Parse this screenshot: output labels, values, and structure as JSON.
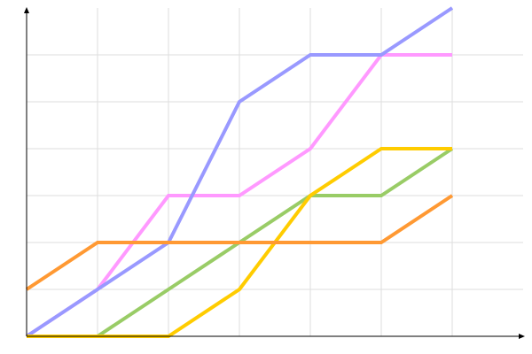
{
  "chart_data": {
    "type": "line",
    "title": "",
    "xlabel": "",
    "ylabel": "",
    "x": [
      0,
      1,
      2,
      3,
      4,
      5,
      6
    ],
    "xlim": [
      0,
      7
    ],
    "ylim": [
      0,
      7
    ],
    "grid": true,
    "legend": "none",
    "series": [
      {
        "color": "#ff99ff",
        "values": [
          0,
          1,
          3,
          3,
          4,
          6,
          6
        ]
      },
      {
        "color": "#9999ff",
        "values": [
          0,
          1,
          2,
          5,
          6,
          6,
          7
        ]
      },
      {
        "color": "#99cc66",
        "values": [
          0,
          0,
          1,
          2,
          3,
          3,
          4
        ]
      },
      {
        "color": "#ffcc00",
        "values": [
          0,
          0,
          0,
          1,
          3,
          4,
          4
        ]
      },
      {
        "color": "#ff9933",
        "values": [
          1,
          2,
          2,
          2,
          2,
          2,
          3
        ]
      }
    ]
  }
}
